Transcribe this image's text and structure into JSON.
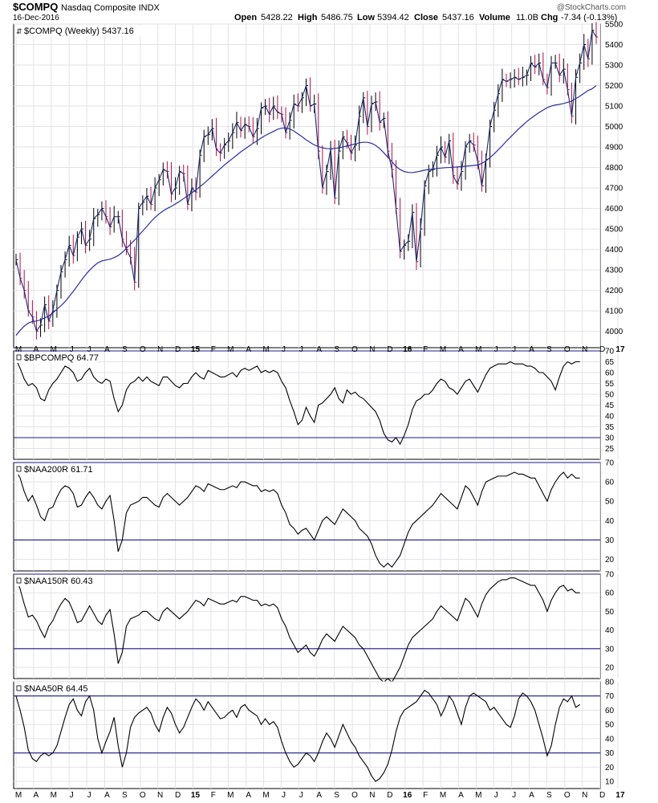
{
  "header": {
    "symbol": "$COMPQ",
    "name": "Nasdaq Composite INDX",
    "date": "16-Dec-2016",
    "watermark": "@StockCharts.com",
    "open_label": "Open",
    "open": "5428.22",
    "high_label": "High",
    "high": "5486.75",
    "low_label": "Low",
    "low": "5394.42",
    "close_label": "Close",
    "close": "5437.16",
    "volume_label": "Volume",
    "volume": "11.0B",
    "chg_label": "Chg",
    "chg": "-7.34 (-0.13%)"
  },
  "colors": {
    "price": "#1a2a6c",
    "ma": "#2b2f9e",
    "up": "#000000",
    "down": "#b0104a",
    "indicator": "#000000",
    "hline": "#1a1a8a",
    "grid": "#e2e2ea",
    "frame": "#000000"
  },
  "chart_data": [
    {
      "type": "line",
      "title": "$COMPQ (Weekly) 5437.16",
      "ylim": [
        3920,
        5500
      ],
      "yticks": [
        4000,
        4100,
        4200,
        4300,
        4400,
        4500,
        4600,
        4700,
        4800,
        4900,
        5000,
        5100,
        5200,
        5300,
        5400,
        5500
      ],
      "x_labels": [
        "M",
        "A",
        "M",
        "J",
        "J",
        "A",
        "S",
        "O",
        "N",
        "D",
        "15",
        "F",
        "M",
        "A",
        "M",
        "J",
        "J",
        "A",
        "S",
        "O",
        "N",
        "D",
        "16",
        "F",
        "M",
        "A",
        "M",
        "J",
        "J",
        "A",
        "S",
        "O",
        "N",
        "D",
        "17"
      ],
      "x_label_positions": [
        0,
        4.3,
        8.6,
        13,
        17.3,
        21.7,
        26,
        30.4,
        34.7,
        39,
        43.3,
        47.7,
        51.9,
        56.3,
        60.6,
        64.9,
        69.2,
        73.6,
        77.9,
        82.3,
        86.6,
        90.9,
        95.2,
        99.6,
        103.9,
        108.3,
        112.6,
        116.9,
        121.3,
        125.6,
        129.9,
        134.3,
        138.6,
        142.9,
        147.3
      ],
      "series": [
        {
          "name": "",
          "role": "close",
          "values": [
            4350,
            4260,
            4200,
            4100,
            4070,
            4000,
            4030,
            4130,
            4050,
            4100,
            4200,
            4290,
            4350,
            4420,
            4370,
            4460,
            4500,
            4420,
            4450,
            4550,
            4570,
            4600,
            4560,
            4510,
            4560,
            4560,
            4450,
            4400,
            4360,
            4240,
            4600,
            4630,
            4660,
            4620,
            4700,
            4740,
            4790,
            4780,
            4670,
            4700,
            4780,
            4770,
            4620,
            4700,
            4680,
            4860,
            4950,
            4960,
            4990,
            4890,
            4870,
            4910,
            4930,
            4970,
            5020,
            4980,
            5010,
            5000,
            4950,
            4990,
            5090,
            5100,
            5060,
            5100,
            5070,
            5060,
            4970,
            5030,
            5110,
            5100,
            5140,
            5200,
            5100,
            5110,
            4880,
            4700,
            4780,
            4890,
            4650,
            4880,
            4950,
            4920,
            4870,
            4910,
            5050,
            5140,
            5000,
            5110,
            5120,
            5020,
            5040,
            4880,
            4790,
            4600,
            4390,
            4420,
            4440,
            4580,
            4340,
            4500,
            4710,
            4780,
            4790,
            4860,
            4900,
            4850,
            4930,
            4760,
            4720,
            4780,
            4900,
            4930,
            4910,
            4830,
            4710,
            4840,
            5000,
            5080,
            5160,
            5230,
            5220,
            5230,
            5240,
            5230,
            5240,
            5250,
            5310,
            5290,
            5310,
            5230,
            5190,
            5310,
            5310,
            5250,
            5280,
            5180,
            5050,
            5240,
            5310,
            5400,
            5330,
            5470,
            5437
          ]
        },
        {
          "name": "",
          "role": "moving-average",
          "values": [
            3980,
            4005,
            4025,
            4040,
            4048,
            4050,
            4056,
            4065,
            4075,
            4090,
            4108,
            4125,
            4145,
            4170,
            4195,
            4222,
            4250,
            4276,
            4298,
            4318,
            4334,
            4344,
            4348,
            4352,
            4360,
            4370,
            4385,
            4405,
            4425,
            4445,
            4468,
            4490,
            4512,
            4535,
            4556,
            4573,
            4588,
            4600,
            4610,
            4622,
            4634,
            4648,
            4662,
            4676,
            4690,
            4706,
            4722,
            4740,
            4758,
            4776,
            4794,
            4812,
            4828,
            4844,
            4860,
            4876,
            4890,
            4904,
            4918,
            4930,
            4944,
            4956,
            4966,
            4976,
            4986,
            4992,
            4993,
            4988,
            4978,
            4964,
            4950,
            4935,
            4922,
            4910,
            4902,
            4896,
            4892,
            4891,
            4893,
            4896,
            4900,
            4905,
            4910,
            4915,
            4920,
            4923,
            4923,
            4918,
            4908,
            4892,
            4872,
            4850,
            4828,
            4805,
            4790,
            4780,
            4776,
            4775,
            4778,
            4782,
            4787,
            4790,
            4793,
            4795,
            4797,
            4799,
            4800,
            4801,
            4802,
            4804,
            4806,
            4808,
            4810,
            4812,
            4820,
            4832,
            4848,
            4866,
            4886,
            4906,
            4928,
            4948,
            4968,
            4988,
            5006,
            5024,
            5040,
            5054,
            5068,
            5080,
            5092,
            5100,
            5105,
            5108,
            5112,
            5118,
            5124,
            5136,
            5148,
            5162,
            5176,
            5184,
            5200
          ]
        }
      ]
    },
    {
      "type": "line",
      "title": "$BPCOMPQ 64.77",
      "ylim": [
        20,
        70
      ],
      "yticks": [
        25,
        30,
        35,
        40,
        45,
        50,
        55,
        60,
        65,
        70
      ],
      "hlines": [
        30,
        70
      ],
      "series": [
        {
          "name": "",
          "values": [
            66,
            62,
            57,
            54,
            55,
            53,
            48,
            47,
            52,
            55,
            57,
            60,
            63,
            62,
            60,
            56,
            57,
            60,
            62,
            58,
            56,
            55,
            57,
            56,
            48,
            42,
            45,
            52,
            55,
            56,
            58,
            56,
            58,
            56,
            55,
            54,
            58,
            58,
            56,
            54,
            53,
            55,
            55,
            58,
            60,
            58,
            57,
            61,
            60,
            59,
            58,
            58,
            59,
            60,
            58,
            61,
            62,
            61,
            62,
            63,
            60,
            61,
            60,
            61,
            60,
            56,
            53,
            47,
            42,
            36,
            38,
            44,
            40,
            37,
            45,
            46,
            48,
            50,
            53,
            48,
            46,
            52,
            50,
            51,
            49,
            48,
            46,
            44,
            42,
            38,
            32,
            29,
            28,
            30,
            27,
            31,
            36,
            43,
            47,
            48,
            50,
            50,
            52,
            55,
            57,
            56,
            53,
            52,
            50,
            53,
            56,
            57,
            54,
            51,
            55,
            59,
            62,
            63,
            64,
            64,
            64,
            65,
            64,
            64,
            64,
            63,
            63,
            62,
            60,
            60,
            58,
            56,
            52,
            58,
            63,
            65,
            64,
            65,
            65
          ]
        }
      ]
    },
    {
      "type": "line",
      "title": "$NAA200R 61.71",
      "ylim": [
        14,
        70
      ],
      "yticks": [
        20,
        30,
        40,
        50,
        60,
        70
      ],
      "hlines": [
        30,
        70
      ],
      "series": [
        {
          "name": "",
          "values": [
            66,
            62,
            55,
            50,
            53,
            48,
            42,
            40,
            46,
            47,
            52,
            56,
            58,
            57,
            54,
            47,
            48,
            52,
            55,
            52,
            48,
            46,
            50,
            53,
            40,
            24,
            30,
            44,
            48,
            49,
            50,
            52,
            52,
            50,
            48,
            47,
            52,
            54,
            52,
            50,
            48,
            50,
            52,
            55,
            58,
            57,
            55,
            59,
            58,
            57,
            56,
            56,
            57,
            58,
            57,
            60,
            60,
            59,
            58,
            58,
            55,
            56,
            55,
            56,
            54,
            48,
            44,
            38,
            36,
            33,
            35,
            36,
            33,
            30,
            35,
            40,
            42,
            40,
            38,
            42,
            46,
            44,
            42,
            40,
            36,
            34,
            32,
            28,
            22,
            18,
            16,
            18,
            16,
            19,
            22,
            28,
            34,
            38,
            40,
            42,
            44,
            46,
            48,
            51,
            54,
            52,
            50,
            48,
            46,
            52,
            58,
            56,
            52,
            48,
            55,
            60,
            61,
            62,
            63,
            63,
            63,
            64,
            65,
            64,
            64,
            63,
            62,
            62,
            58,
            54,
            50,
            56,
            60,
            63,
            65,
            62,
            64,
            62,
            62
          ]
        }
      ]
    },
    {
      "type": "line",
      "title": "$NAA150R 60.43",
      "ylim": [
        14,
        70
      ],
      "yticks": [
        20,
        30,
        40,
        50,
        60,
        70
      ],
      "hlines": [
        30,
        70
      ],
      "series": [
        {
          "name": "",
          "values": [
            68,
            62,
            54,
            47,
            48,
            45,
            40,
            36,
            42,
            45,
            50,
            54,
            57,
            55,
            50,
            44,
            45,
            49,
            53,
            49,
            45,
            43,
            48,
            51,
            38,
            22,
            28,
            42,
            46,
            47,
            48,
            50,
            50,
            48,
            46,
            45,
            50,
            52,
            50,
            48,
            46,
            48,
            50,
            53,
            56,
            55,
            53,
            57,
            56,
            55,
            54,
            54,
            55,
            56,
            55,
            58,
            58,
            57,
            56,
            56,
            53,
            54,
            53,
            54,
            52,
            46,
            42,
            36,
            32,
            28,
            30,
            32,
            28,
            26,
            30,
            35,
            38,
            36,
            34,
            38,
            42,
            40,
            38,
            36,
            32,
            30,
            26,
            22,
            18,
            14,
            12,
            14,
            12,
            16,
            20,
            26,
            32,
            36,
            38,
            40,
            42,
            44,
            46,
            50,
            53,
            51,
            49,
            47,
            45,
            51,
            57,
            55,
            51,
            47,
            54,
            59,
            62,
            64,
            66,
            67,
            67,
            68,
            68,
            67,
            66,
            65,
            64,
            64,
            60,
            56,
            50,
            56,
            60,
            63,
            64,
            61,
            62,
            60,
            60
          ]
        }
      ]
    },
    {
      "type": "line",
      "title": "$NAA50R 64.45",
      "ylim": [
        5,
        80
      ],
      "yticks": [
        10,
        20,
        30,
        40,
        50,
        60,
        70,
        80
      ],
      "hlines": [
        30,
        70
      ],
      "series": [
        {
          "name": "",
          "values": [
            70,
            60,
            48,
            32,
            26,
            24,
            28,
            30,
            28,
            30,
            35,
            45,
            55,
            64,
            68,
            60,
            56,
            66,
            70,
            60,
            40,
            30,
            38,
            45,
            55,
            35,
            20,
            30,
            48,
            55,
            58,
            60,
            62,
            58,
            50,
            45,
            55,
            62,
            58,
            50,
            44,
            48,
            55,
            62,
            68,
            65,
            60,
            66,
            62,
            58,
            54,
            55,
            58,
            60,
            55,
            62,
            64,
            60,
            58,
            56,
            50,
            54,
            50,
            52,
            48,
            38,
            30,
            24,
            20,
            22,
            26,
            30,
            28,
            24,
            30,
            38,
            44,
            40,
            34,
            42,
            50,
            44,
            38,
            34,
            28,
            24,
            20,
            14,
            10,
            12,
            16,
            22,
            32,
            45,
            55,
            60,
            62,
            64,
            66,
            70,
            74,
            72,
            68,
            64,
            56,
            62,
            70,
            66,
            58,
            50,
            62,
            70,
            72,
            70,
            68,
            66,
            60,
            62,
            58,
            54,
            50,
            48,
            56,
            68,
            72,
            70,
            66,
            60,
            50,
            40,
            28,
            35,
            50,
            62,
            68,
            66,
            70,
            62,
            64
          ]
        }
      ]
    }
  ]
}
